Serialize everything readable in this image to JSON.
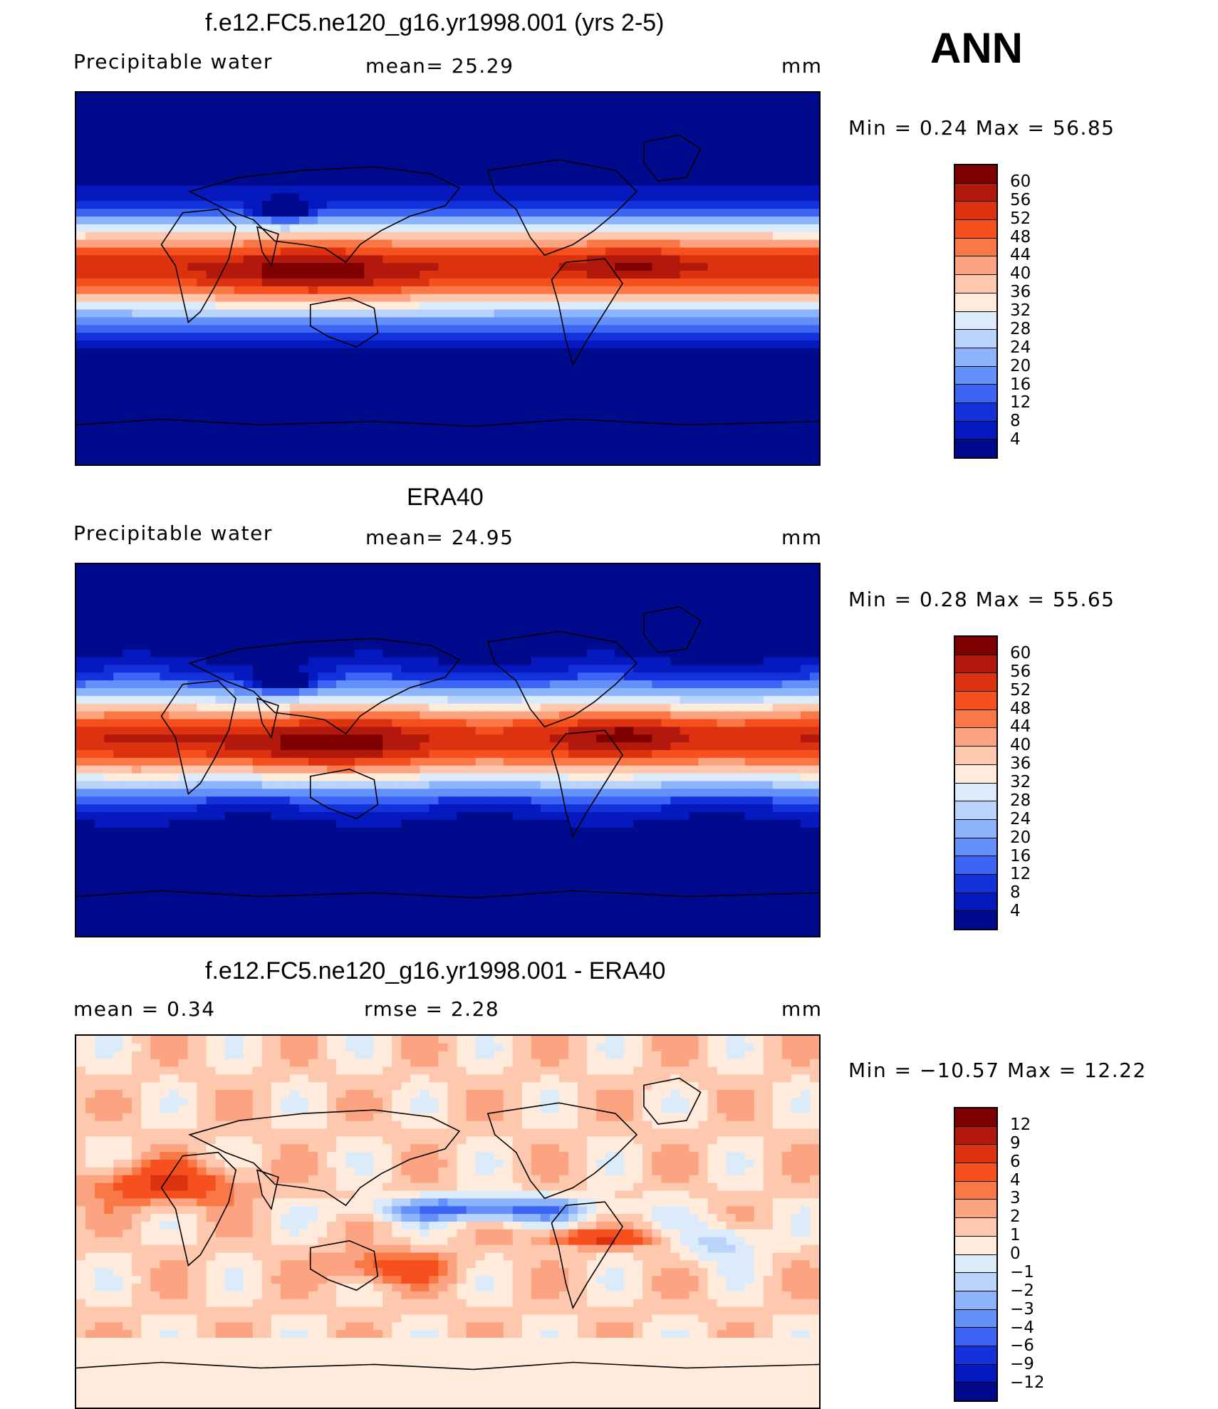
{
  "season": "ANN",
  "panels": [
    {
      "title": "f.e12.FC5.ne120_g16.yr1998.001 (yrs 2-5)",
      "left_label": "Precipitable  water",
      "center_label": "mean=   25.29",
      "units": "mm",
      "minmax": "Min  =     0.24  Max  =    56.85",
      "kind": "abs"
    },
    {
      "title": "ERA40",
      "left_label": "Precipitable  water",
      "center_label": "mean=   24.95",
      "units": "mm",
      "minmax": "Min  =     0.28  Max  =    55.65",
      "kind": "abs"
    },
    {
      "title": "f.e12.FC5.ne120_g16.yr1998.001 - ERA40",
      "left_label": "mean  =      0.34",
      "center_label": "rmse  =      2.28",
      "units": "mm",
      "minmax": "Min  = −10.57  Max  =    12.22",
      "kind": "diff"
    }
  ],
  "colorbars": {
    "abs": {
      "labels": [
        "60",
        "56",
        "52",
        "48",
        "44",
        "40",
        "36",
        "32",
        "28",
        "24",
        "20",
        "16",
        "12",
        "8",
        "4"
      ],
      "colors": [
        "#7f0000",
        "#b2180b",
        "#dc3210",
        "#f5501e",
        "#fa7846",
        "#fca482",
        "#fdc8ad",
        "#feebdc",
        "#dcebfa",
        "#b9d3fa",
        "#8cb4fa",
        "#6490fa",
        "#3c64f5",
        "#1432dc",
        "#0519be",
        "#000a8c"
      ]
    },
    "diff": {
      "labels": [
        "12",
        "9",
        "6",
        "4",
        "3",
        "2",
        "1",
        "0",
        "−1",
        "−2",
        "−3",
        "−4",
        "−6",
        "−9",
        "−12"
      ],
      "colors": [
        "#7f0000",
        "#b2180b",
        "#dc3210",
        "#f5501e",
        "#fa7846",
        "#fca482",
        "#fdc8ad",
        "#feebdc",
        "#dcebfa",
        "#b9d3fa",
        "#8cb4fa",
        "#6490fa",
        "#3c64f5",
        "#1432dc",
        "#0519be",
        "#000a8c"
      ]
    }
  }
}
